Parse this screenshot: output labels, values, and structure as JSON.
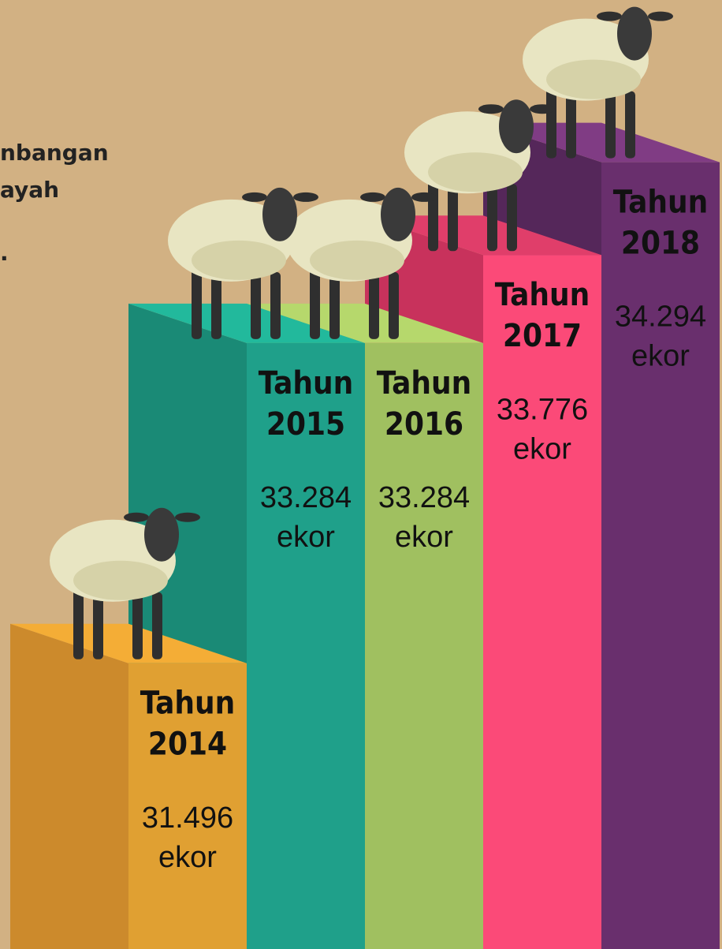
{
  "chart_data": {
    "type": "bar",
    "left_text": [
      "nbangan",
      "ayah",
      "."
    ],
    "label_prefix": "Tahun",
    "unit": "ekor",
    "categories": [
      "2014",
      "2015",
      "2016",
      "2017",
      "2018"
    ],
    "values": [
      31496,
      33284,
      33284,
      33776,
      34294
    ],
    "value_labels": [
      "31.496",
      "33.284",
      "33.284",
      "33.776",
      "34.294"
    ],
    "ylim": [
      29900,
      35200
    ],
    "colors": [
      "#e0a032",
      "#1fa08a",
      "#a0c060",
      "#fb4a78",
      "#692f6d"
    ],
    "side_colors": [
      "#cc8a2c",
      "#1a8a76",
      "#8faf55",
      "#c8325c",
      "#55275a"
    ],
    "top_colors": [
      "#f4ad36",
      "#22b99c",
      "#b6d86c",
      "#e03e6a",
      "#803c84"
    ]
  }
}
